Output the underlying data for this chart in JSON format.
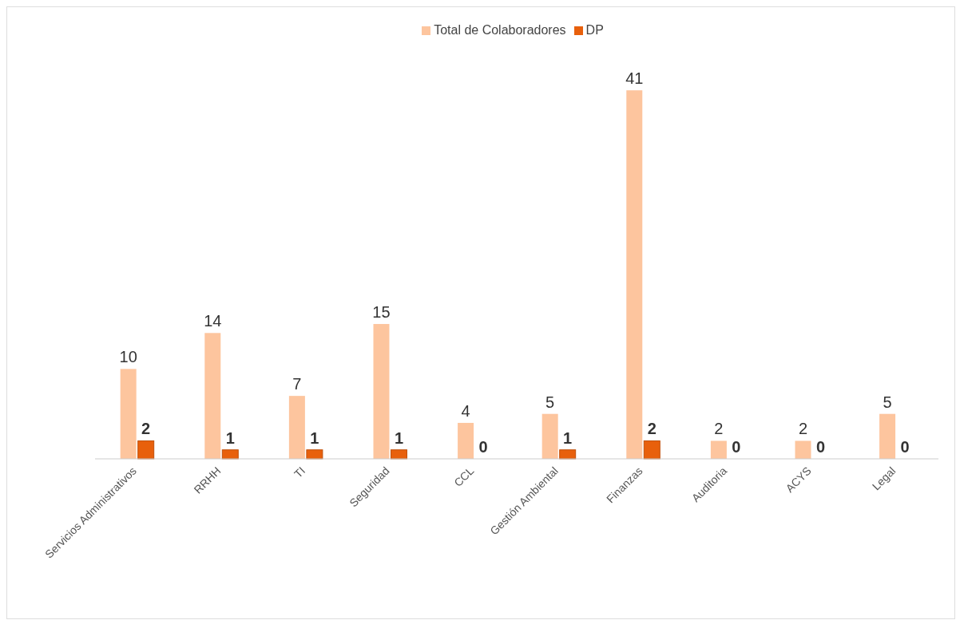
{
  "chart_data": {
    "type": "bar",
    "categories": [
      "Servicios Administrativos",
      "RRHH",
      "TI",
      "Seguridad",
      "CCL",
      "Gestión Ambiental",
      "Finanzas",
      "Auditoria",
      "ACYS",
      "Legal"
    ],
    "series": [
      {
        "name": "Total de Colaboradores",
        "color": "#fdc59e",
        "values": [
          10,
          14,
          7,
          15,
          4,
          5,
          41,
          2,
          2,
          5
        ]
      },
      {
        "name": "DP",
        "color": "#e8600c",
        "values": [
          2,
          1,
          1,
          1,
          0,
          1,
          2,
          0,
          0,
          0
        ]
      }
    ],
    "data_labels": true,
    "legend": "top",
    "grid": false
  }
}
